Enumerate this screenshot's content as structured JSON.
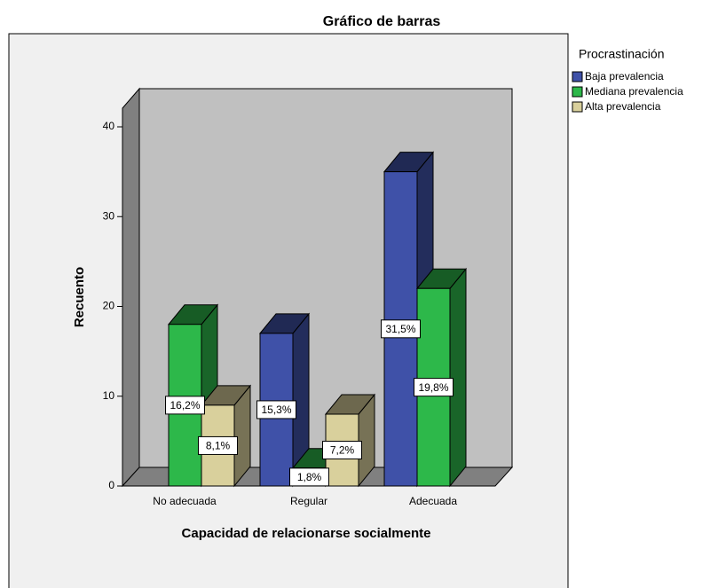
{
  "chart_data": {
    "type": "bar3d",
    "title": "Gráfico de barras",
    "x_label": "Capacidad de relacionarse socialmente",
    "y_label": "Recuento",
    "legend_title": "Procrastinación",
    "categories": [
      "No adecuada",
      "Regular",
      "Adecuada"
    ],
    "series": [
      {
        "name": "Baja prevalencia",
        "color": "#3f51a8",
        "values": [
          null,
          17,
          35
        ],
        "percent_labels": [
          null,
          "15,3%",
          "31,5%"
        ]
      },
      {
        "name": "Mediana prevalencia",
        "color": "#2db84a",
        "values": [
          18,
          2,
          22
        ],
        "percent_labels": [
          "16,2%",
          "1,8%",
          "19,8%"
        ]
      },
      {
        "name": "Alta prevalencia",
        "color": "#d9d09c",
        "values": [
          9,
          8,
          null
        ],
        "percent_labels": [
          "8,1%",
          "7,2%",
          null
        ]
      }
    ],
    "ylim": [
      0,
      44
    ],
    "yticks": [
      0,
      10,
      20,
      30,
      40
    ],
    "legend": "right"
  }
}
